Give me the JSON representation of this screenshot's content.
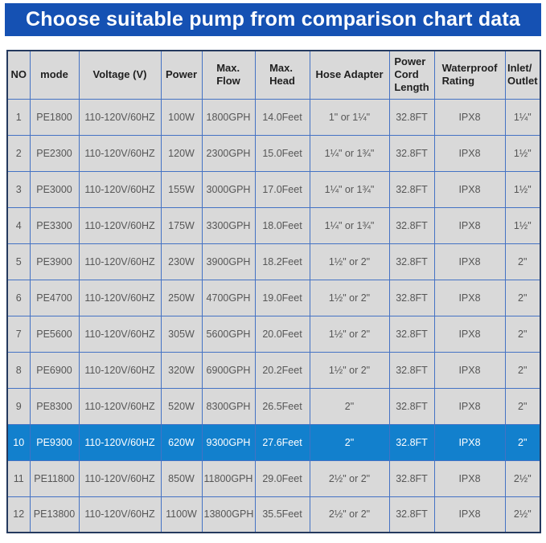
{
  "banner": {
    "title": "Choose suitable pump from comparison chart data"
  },
  "colors": {
    "banner_bg": "#1551b3",
    "highlight_bg": "#1280cd",
    "grid_line": "#4472c4",
    "outer_border": "#24395e",
    "cell_bg": "#d9d9d9"
  },
  "chart_data": {
    "type": "table",
    "title": "Choose suitable pump from comparison chart data",
    "columns": [
      "NO",
      "mode",
      "Voltage (V)",
      "Power",
      "Max.\nFlow",
      "Max.\nHead",
      "Hose Adapter",
      "Power\nCord\nLength",
      "Waterproof\nRating",
      "Inlet/\nOutlet"
    ],
    "highlighted_row_index": 9,
    "highlighted_row_mode": "PE9300",
    "rows": [
      [
        "1",
        "PE1800",
        "110-120V/60HZ",
        "100W",
        "1800GPH",
        "14.0Feet",
        "1\" or 1¼\"",
        "32.8FT",
        "IPX8",
        "1¼\""
      ],
      [
        "2",
        "PE2300",
        "110-120V/60HZ",
        "120W",
        "2300GPH",
        "15.0Feet",
        "1¼\" or 1¾\"",
        "32.8FT",
        "IPX8",
        "1½\""
      ],
      [
        "3",
        "PE3000",
        "110-120V/60HZ",
        "155W",
        "3000GPH",
        "17.0Feet",
        "1¼\" or 1¾\"",
        "32.8FT",
        "IPX8",
        "1½\""
      ],
      [
        "4",
        "PE3300",
        "110-120V/60HZ",
        "175W",
        "3300GPH",
        "18.0Feet",
        "1¼\" or 1¾\"",
        "32.8FT",
        "IPX8",
        "1½\""
      ],
      [
        "5",
        "PE3900",
        "110-120V/60HZ",
        "230W",
        "3900GPH",
        "18.2Feet",
        "1½\" or 2\"",
        "32.8FT",
        "IPX8",
        "2\""
      ],
      [
        "6",
        "PE4700",
        "110-120V/60HZ",
        "250W",
        "4700GPH",
        "19.0Feet",
        "1½\" or 2\"",
        "32.8FT",
        "IPX8",
        "2\""
      ],
      [
        "7",
        "PE5600",
        "110-120V/60HZ",
        "305W",
        "5600GPH",
        "20.0Feet",
        "1½\" or 2\"",
        "32.8FT",
        "IPX8",
        "2\""
      ],
      [
        "8",
        "PE6900",
        "110-120V/60HZ",
        "320W",
        "6900GPH",
        "20.2Feet",
        "1½\" or 2\"",
        "32.8FT",
        "IPX8",
        "2\""
      ],
      [
        "9",
        "PE8300",
        "110-120V/60HZ",
        "520W",
        "8300GPH",
        "26.5Feet",
        "2\"",
        "32.8FT",
        "IPX8",
        "2\""
      ],
      [
        "10",
        "PE9300",
        "110-120V/60HZ",
        "620W",
        "9300GPH",
        "27.6Feet",
        "2\"",
        "32.8FT",
        "IPX8",
        "2\""
      ],
      [
        "11",
        "PE11800",
        "110-120V/60HZ",
        "850W",
        "11800GPH",
        "29.0Feet",
        "2½\" or 2\"",
        "32.8FT",
        "IPX8",
        "2½\""
      ],
      [
        "12",
        "PE13800",
        "110-120V/60HZ",
        "1100W",
        "13800GPH",
        "35.5Feet",
        "2½\" or 2\"",
        "32.8FT",
        "IPX8",
        "2½\""
      ]
    ]
  }
}
